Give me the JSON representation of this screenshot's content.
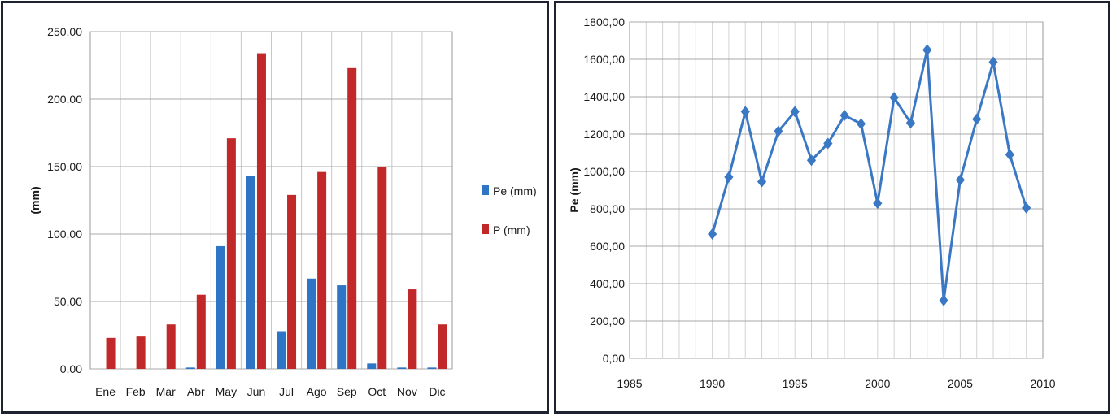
{
  "chart_data": [
    {
      "type": "bar",
      "categories": [
        "Ene",
        "Feb",
        "Mar",
        "Abr",
        "May",
        "Jun",
        "Jul",
        "Ago",
        "Sep",
        "Oct",
        "Nov",
        "Dic"
      ],
      "series": [
        {
          "name": "Pe (mm)",
          "color": "#2e75c6",
          "values": [
            0,
            0,
            0,
            1,
            91,
            143,
            28,
            67,
            62,
            4,
            1,
            1
          ]
        },
        {
          "name": "P (mm)",
          "color": "#c0282a",
          "values": [
            23,
            24,
            33,
            55,
            171,
            234,
            129,
            146,
            223,
            150,
            59,
            33
          ]
        }
      ],
      "ylabel": "(mm)",
      "ylim": [
        0,
        250
      ],
      "yticks": [
        "0,00",
        "50,00",
        "100,00",
        "150,00",
        "200,00",
        "250,00"
      ],
      "grid": true,
      "legend": "right"
    },
    {
      "type": "line",
      "series": [
        {
          "color": "#3b78c4",
          "marker": "diamond",
          "x": [
            1990,
            1991,
            1992,
            1993,
            1994,
            1995,
            1996,
            1997,
            1998,
            1999,
            2000,
            2001,
            2002,
            2003,
            2004,
            2005,
            2006,
            2007,
            2008,
            2009
          ],
          "y": [
            665,
            970,
            1320,
            945,
            1215,
            1320,
            1060,
            1150,
            1300,
            1255,
            830,
            1395,
            1260,
            1650,
            310,
            955,
            1280,
            1585,
            1090,
            805
          ]
        }
      ],
      "ylabel": "Pe (mm)",
      "xlim": [
        1985,
        2010
      ],
      "ylim": [
        0,
        1800
      ],
      "xticks": [
        "1985",
        "1990",
        "1995",
        "2000",
        "2005",
        "2010"
      ],
      "yticks": [
        "0,00",
        "200,00",
        "400,00",
        "600,00",
        "800,00",
        "1000,00",
        "1200,00",
        "1400,00",
        "1600,00",
        "1800,00"
      ],
      "grid": true
    }
  ]
}
